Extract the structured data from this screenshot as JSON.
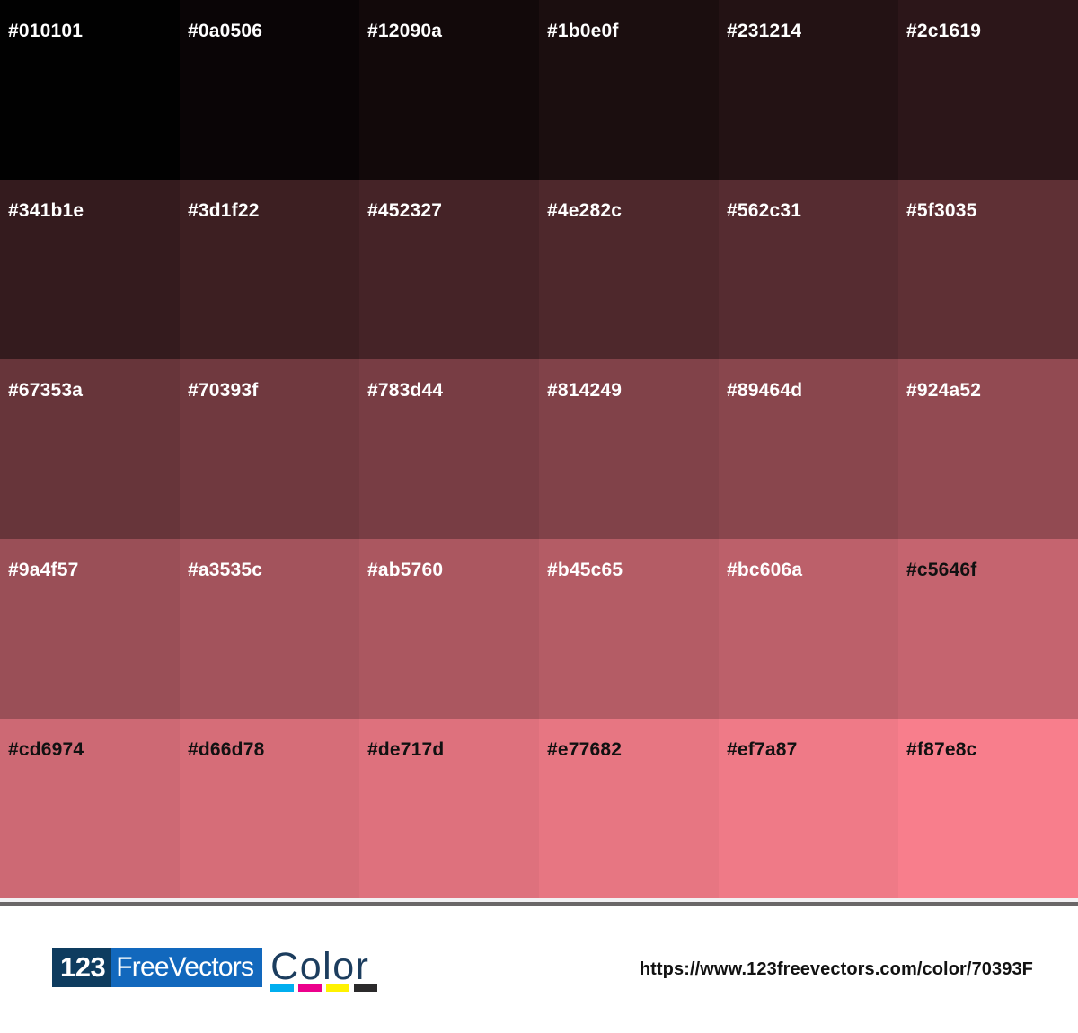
{
  "palette": {
    "rows": 5,
    "cols": 6,
    "swatches": [
      {
        "hex": "#010101",
        "text": "#ffffff"
      },
      {
        "hex": "#0a0506",
        "text": "#ffffff"
      },
      {
        "hex": "#12090a",
        "text": "#ffffff"
      },
      {
        "hex": "#1b0e0f",
        "text": "#ffffff"
      },
      {
        "hex": "#231214",
        "text": "#ffffff"
      },
      {
        "hex": "#2c1619",
        "text": "#ffffff"
      },
      {
        "hex": "#341b1e",
        "text": "#ffffff"
      },
      {
        "hex": "#3d1f22",
        "text": "#ffffff"
      },
      {
        "hex": "#452327",
        "text": "#ffffff"
      },
      {
        "hex": "#4e282c",
        "text": "#ffffff"
      },
      {
        "hex": "#562c31",
        "text": "#ffffff"
      },
      {
        "hex": "#5f3035",
        "text": "#ffffff"
      },
      {
        "hex": "#67353a",
        "text": "#ffffff"
      },
      {
        "hex": "#70393f",
        "text": "#ffffff"
      },
      {
        "hex": "#783d44",
        "text": "#ffffff"
      },
      {
        "hex": "#814249",
        "text": "#ffffff"
      },
      {
        "hex": "#89464d",
        "text": "#ffffff"
      },
      {
        "hex": "#924a52",
        "text": "#ffffff"
      },
      {
        "hex": "#9a4f57",
        "text": "#ffffff"
      },
      {
        "hex": "#a3535c",
        "text": "#ffffff"
      },
      {
        "hex": "#ab5760",
        "text": "#ffffff"
      },
      {
        "hex": "#b45c65",
        "text": "#ffffff"
      },
      {
        "hex": "#bc606a",
        "text": "#ffffff"
      },
      {
        "hex": "#c5646f",
        "text": "#111111"
      },
      {
        "hex": "#cd6974",
        "text": "#111111"
      },
      {
        "hex": "#d66d78",
        "text": "#111111"
      },
      {
        "hex": "#de717d",
        "text": "#111111"
      },
      {
        "hex": "#e77682",
        "text": "#111111"
      },
      {
        "hex": "#ef7a87",
        "text": "#111111"
      },
      {
        "hex": "#f87e8c",
        "text": "#111111"
      }
    ]
  },
  "divider": {
    "light": "#f2f1f3",
    "dark": "#6a6768"
  },
  "footer": {
    "logo": {
      "number": "123",
      "brand": "FreeVectors",
      "word": "Color",
      "number_bg": "#0e3c5f",
      "brand_bg": "#1268bd",
      "word_color": "#1c3d5e",
      "cmyk_bars": [
        {
          "name": "cyan",
          "hex": "#00aeef"
        },
        {
          "name": "magenta",
          "hex": "#ec008c"
        },
        {
          "name": "yellow",
          "hex": "#fff200"
        },
        {
          "name": "black",
          "hex": "#2b2a2b"
        }
      ]
    },
    "url": "https://www.123freevectors.com/color/70393F"
  }
}
